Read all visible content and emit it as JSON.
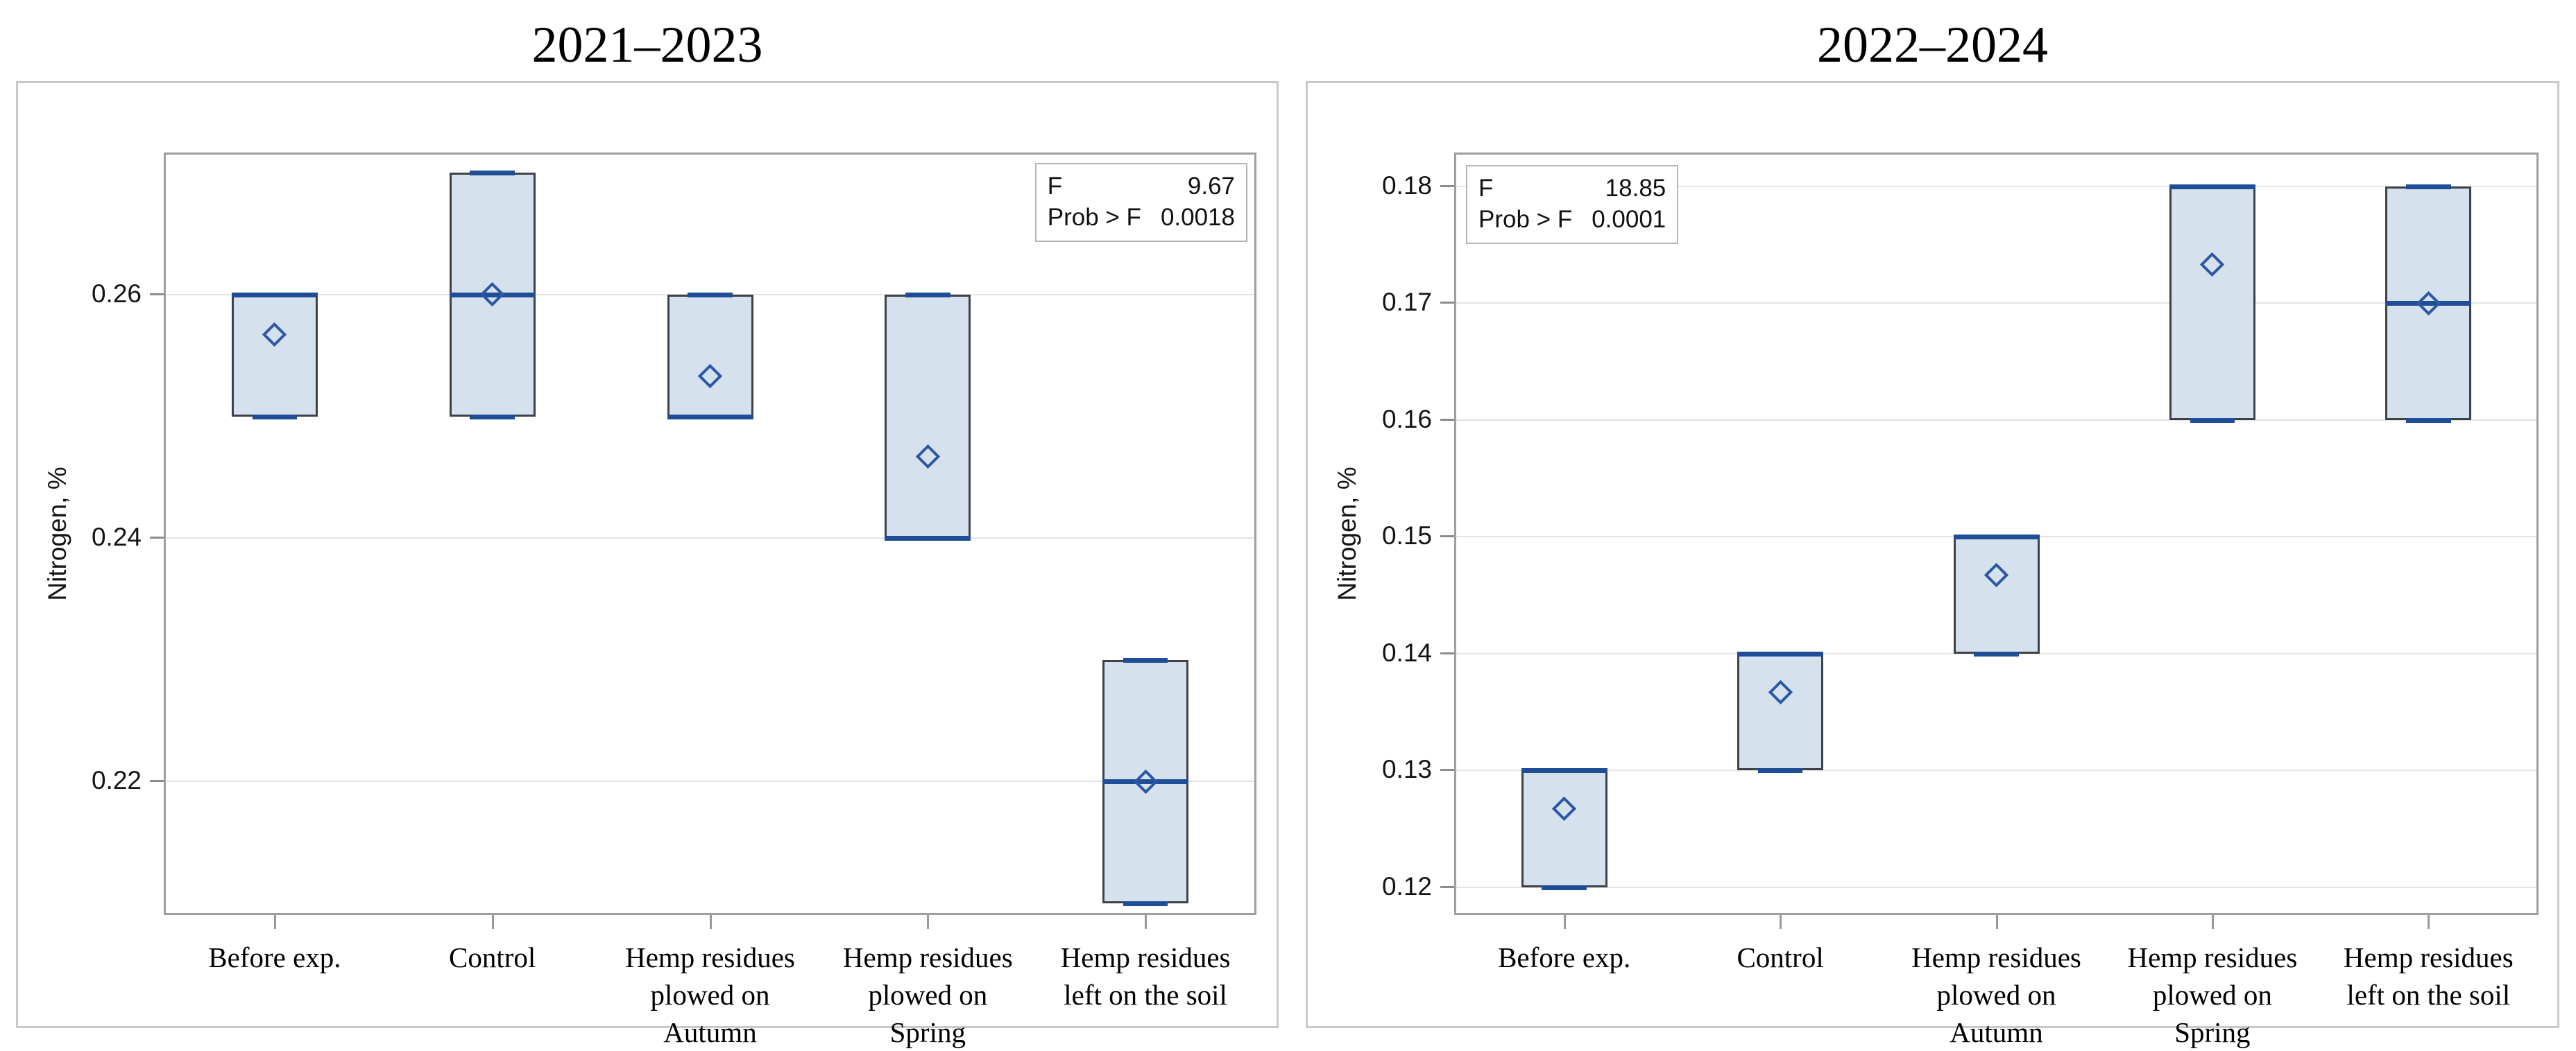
{
  "figure": {
    "description": "Two side-by-side box-and-whisker plots of soil nitrogen content by treatment",
    "panel_titles": [
      "2021–2023",
      "2022–2024"
    ]
  },
  "style": {
    "box_fill": "#d6e1ee",
    "box_border": "#3d4248",
    "median_blue": "#1f4e96",
    "diamond_blue": "#2b57a5",
    "gridline_gray": "#e4e4e4",
    "frame_gray": "#9e9e9e",
    "panel_border_gray": "#c9c9c9"
  },
  "chart_data": [
    {
      "type": "box",
      "title": "2021–2023",
      "ylabel": "Nitrogen, %",
      "ylim": [
        0.2092,
        0.2715
      ],
      "grid": true,
      "yticks": [
        {
          "value": 0.26,
          "label": "0.26"
        },
        {
          "value": 0.24,
          "label": "0.24"
        },
        {
          "value": 0.22,
          "label": "0.22"
        }
      ],
      "categories": [
        {
          "label": "Before exp.",
          "lines": [
            "Before exp."
          ]
        },
        {
          "label": "Control",
          "lines": [
            "Control"
          ]
        },
        {
          "label": "Hemp residues plowed on Autumn",
          "lines": [
            "Hemp residues",
            "plowed on",
            "Autumn"
          ]
        },
        {
          "label": "Hemp residues plowed on Spring",
          "lines": [
            "Hemp residues",
            "plowed on",
            "Spring"
          ]
        },
        {
          "label": "Hemp residues left on the soil",
          "lines": [
            "Hemp residues",
            "left on the soil"
          ]
        }
      ],
      "boxes": [
        {
          "category": "Before exp.",
          "min": 0.25,
          "q1": 0.25,
          "median": 0.26,
          "q3": 0.26,
          "max": 0.26,
          "mean": 0.2567
        },
        {
          "category": "Control",
          "min": 0.25,
          "q1": 0.25,
          "median": 0.26,
          "q3": 0.27,
          "max": 0.27,
          "mean": 0.26
        },
        {
          "category": "Hemp residues plowed on Autumn",
          "min": 0.25,
          "q1": 0.25,
          "median": 0.25,
          "q3": 0.26,
          "max": 0.26,
          "mean": 0.2533
        },
        {
          "category": "Hemp residues plowed on Spring",
          "min": 0.24,
          "q1": 0.24,
          "median": 0.24,
          "q3": 0.26,
          "max": 0.26,
          "mean": 0.2467
        },
        {
          "category": "Hemp residues left on the soil",
          "min": 0.21,
          "q1": 0.21,
          "median": 0.22,
          "q3": 0.23,
          "max": 0.23,
          "mean": 0.22
        }
      ],
      "stats": {
        "position": "top-right",
        "rows": [
          {
            "label": "F",
            "value": "9.67"
          },
          {
            "label": "Prob > F",
            "value": "0.0018"
          }
        ]
      }
    },
    {
      "type": "box",
      "title": "2022–2024",
      "ylabel": "Nitrogen, %",
      "ylim": [
        0.1178,
        0.1827
      ],
      "grid": true,
      "yticks": [
        {
          "value": 0.18,
          "label": "0.18"
        },
        {
          "value": 0.17,
          "label": "0.17"
        },
        {
          "value": 0.16,
          "label": "0.16"
        },
        {
          "value": 0.15,
          "label": "0.15"
        },
        {
          "value": 0.14,
          "label": "0.14"
        },
        {
          "value": 0.13,
          "label": "0.13"
        },
        {
          "value": 0.12,
          "label": "0.12"
        }
      ],
      "categories": [
        {
          "label": "Before exp.",
          "lines": [
            "Before exp."
          ]
        },
        {
          "label": "Control",
          "lines": [
            "Control"
          ]
        },
        {
          "label": "Hemp residues plowed on Autumn",
          "lines": [
            "Hemp residues",
            "plowed on",
            "Autumn"
          ]
        },
        {
          "label": "Hemp residues plowed on Spring",
          "lines": [
            "Hemp residues",
            "plowed on",
            "Spring"
          ]
        },
        {
          "label": "Hemp residues left on the soil",
          "lines": [
            "Hemp residues",
            "left on the soil"
          ]
        }
      ],
      "boxes": [
        {
          "category": "Before exp.",
          "min": 0.12,
          "q1": 0.12,
          "median": 0.13,
          "q3": 0.13,
          "max": 0.13,
          "mean": 0.1267
        },
        {
          "category": "Control",
          "min": 0.13,
          "q1": 0.13,
          "median": 0.14,
          "q3": 0.14,
          "max": 0.14,
          "mean": 0.1367
        },
        {
          "category": "Hemp residues plowed on Autumn",
          "min": 0.14,
          "q1": 0.14,
          "median": 0.15,
          "q3": 0.15,
          "max": 0.15,
          "mean": 0.1467
        },
        {
          "category": "Hemp residues plowed on Spring",
          "min": 0.16,
          "q1": 0.16,
          "median": 0.18,
          "q3": 0.18,
          "max": 0.18,
          "mean": 0.1733
        },
        {
          "category": "Hemp residues left on the soil",
          "min": 0.16,
          "q1": 0.16,
          "median": 0.17,
          "q3": 0.18,
          "max": 0.18,
          "mean": 0.17
        }
      ],
      "stats": {
        "position": "top-left",
        "rows": [
          {
            "label": "F",
            "value": "18.85"
          },
          {
            "label": "Prob > F",
            "value": "0.0001"
          }
        ]
      }
    }
  ]
}
